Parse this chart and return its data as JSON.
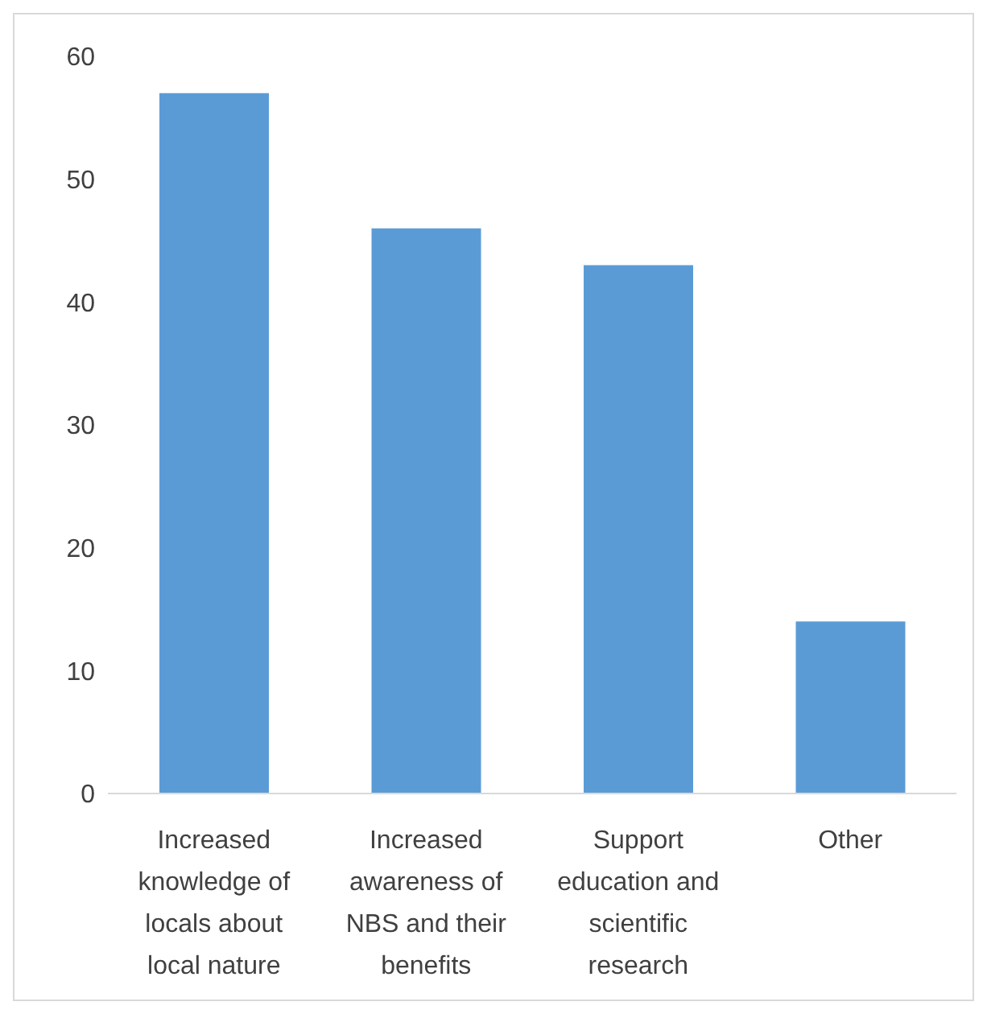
{
  "chart_data": {
    "type": "bar",
    "categories": [
      "Increased knowledge of locals about local nature",
      "Increased awareness of NBS and their benefits",
      "Support education and scientific research",
      "Other"
    ],
    "values": [
      57,
      46,
      43,
      14
    ],
    "color": "#5b9bd5",
    "ylim": [
      0,
      60
    ],
    "yticks": [
      0,
      10,
      20,
      30,
      40,
      50,
      60
    ],
    "grid": false,
    "legend": false
  }
}
